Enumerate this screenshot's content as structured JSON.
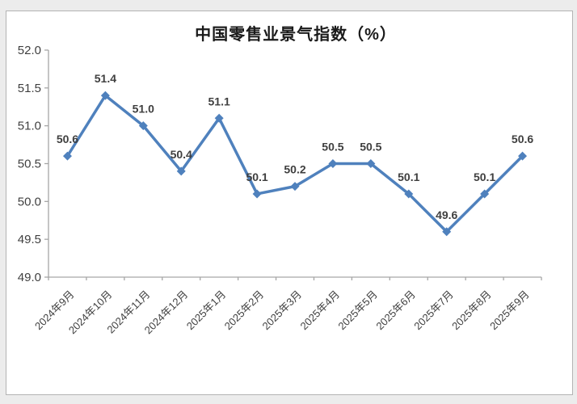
{
  "chart_data": {
    "type": "line",
    "title": "中国零售业景气指数（%）",
    "categories": [
      "2024年9月",
      "2024年10月",
      "2024年11月",
      "2024年12月",
      "2025年1月",
      "2025年2月",
      "2025年3月",
      "2025年4月",
      "2025年5月",
      "2025年6月",
      "2025年7月",
      "2025年8月",
      "2025年9月"
    ],
    "values": [
      50.6,
      51.4,
      51.0,
      50.4,
      51.1,
      50.1,
      50.2,
      50.5,
      50.5,
      50.1,
      49.6,
      50.1,
      50.6
    ],
    "xlabel": "",
    "ylabel": "",
    "ylim": [
      49.0,
      52.0
    ],
    "yticks": [
      49.0,
      49.5,
      50.0,
      50.5,
      51.0,
      51.5,
      52.0
    ],
    "grid": false,
    "legend": "none",
    "data_labels": true,
    "marker": "diamond",
    "colors": {
      "line": "#4f81bd",
      "marker": "#4f81bd",
      "label_text": "#3f3f3f",
      "axis": "#a6a6a6",
      "frame_border": "#b3b3b3",
      "page_bg": "#ececec",
      "plot_bg": "#ffffff"
    }
  }
}
